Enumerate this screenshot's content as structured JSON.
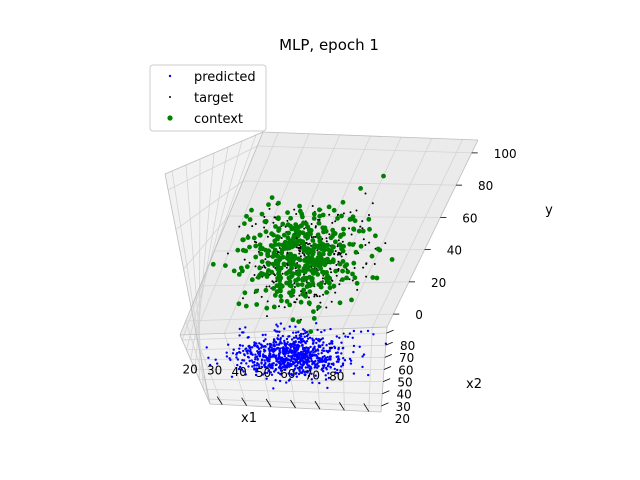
{
  "chart_data": {
    "type": "scatter",
    "projection": "3d",
    "title": "MLP, epoch 1",
    "xlabel": "x1",
    "ylabel": "x2",
    "zlabel": "y",
    "xlim": [
      15,
      85
    ],
    "ylim": [
      15,
      85
    ],
    "zlim": [
      -8,
      108
    ],
    "xticks": [
      "20",
      "30",
      "40",
      "50",
      "60",
      "70",
      "80"
    ],
    "yticks": [
      "20",
      "30",
      "40",
      "50",
      "60",
      "70",
      "80"
    ],
    "zticks": [
      "0",
      "20",
      "40",
      "60",
      "80",
      "100"
    ],
    "grid": true,
    "legend_position": "top-left",
    "series": [
      {
        "name": "predicted",
        "color": "#0000ff",
        "marker": "small-dot",
        "x_mean": 50,
        "x_sd": 10,
        "y_mean": 50,
        "y_sd": 10,
        "z_mean": 0,
        "z_sd": 1.5,
        "count": 850
      },
      {
        "name": "target",
        "color": "#000000",
        "marker": "tiny-dot",
        "x_mean": 50,
        "x_sd": 10,
        "y_mean": 50,
        "y_sd": 10,
        "z_mean": 55,
        "z_sd": 12,
        "count": 420
      },
      {
        "name": "context",
        "color": "#008000",
        "marker": "dot",
        "x_mean": 50,
        "x_sd": 10,
        "y_mean": 50,
        "y_sd": 10,
        "z_mean": 55,
        "z_sd": 12,
        "count": 430
      }
    ]
  }
}
